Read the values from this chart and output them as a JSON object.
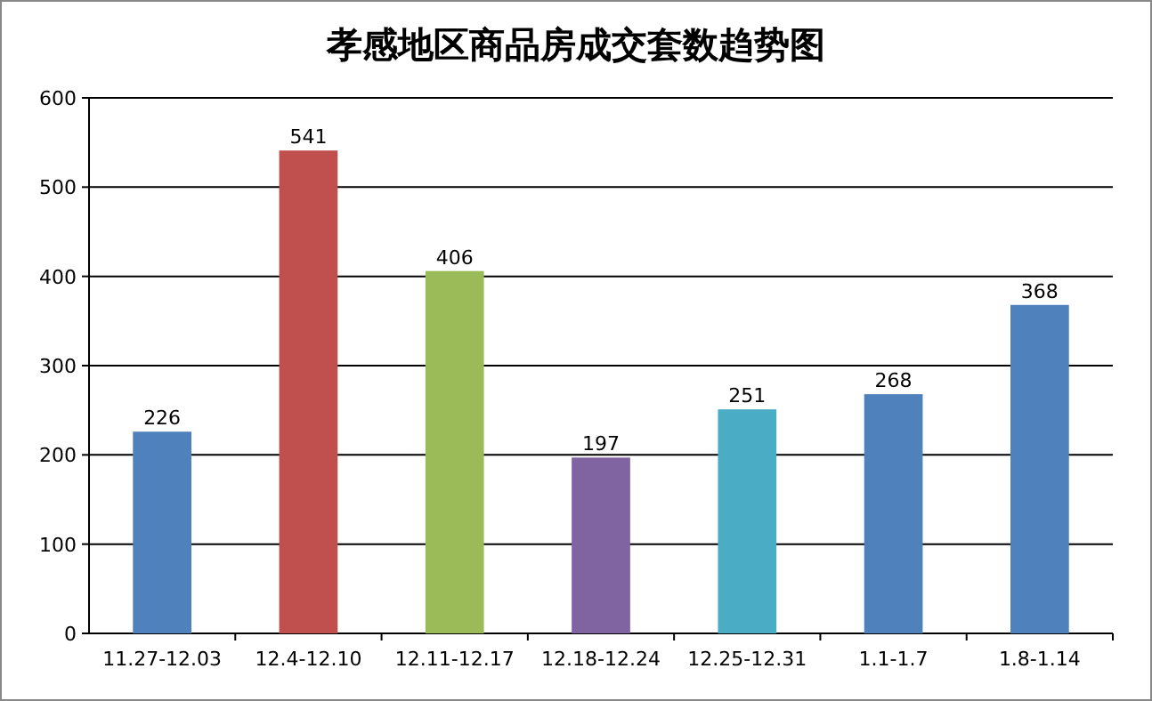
{
  "chart_data": {
    "type": "bar",
    "title": "孝感地区商品房成交套数趋势图",
    "categories": [
      "11.27-12.03",
      "12.4-12.10",
      "12.11-12.17",
      "12.18-12.24",
      "12.25-12.31",
      "1.1-1.7",
      "1.8-1.14"
    ],
    "values": [
      226,
      541,
      406,
      197,
      251,
      268,
      368
    ],
    "colors": [
      "#4f81bd",
      "#c0504d",
      "#9bbb59",
      "#8064a2",
      "#4bacc6",
      "#4f81bd",
      "#4f81bd"
    ],
    "ylim": [
      0,
      600
    ],
    "yticks": [
      0,
      100,
      200,
      300,
      400,
      500,
      600
    ],
    "grid": "y",
    "data_labels": true
  }
}
